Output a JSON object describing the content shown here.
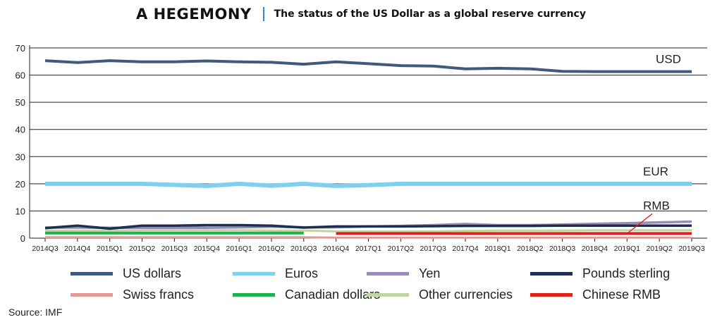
{
  "header": {
    "title": "A HEGEMONY",
    "subtitle": "The status of the US Dollar as a global reserve currency"
  },
  "source": "Source: IMF",
  "chart_data": {
    "type": "line",
    "title": "A HEGEMONY",
    "subtitle": "The status of the US Dollar as a global reserve currency",
    "xlabel": "",
    "ylabel": "",
    "ylim": [
      0,
      70
    ],
    "yticks": [
      0,
      10,
      20,
      30,
      40,
      50,
      60,
      70
    ],
    "grid": true,
    "legend_position": "bottom",
    "categories": [
      "2014Q3",
      "2014Q4",
      "2015Q1",
      "2015Q2",
      "2015Q3",
      "2015Q4",
      "2016Q1",
      "2016Q2",
      "2016Q3",
      "2016Q4",
      "2017Q1",
      "2017Q2",
      "2017Q3",
      "2017Q4",
      "2018Q1",
      "2018Q2",
      "2018Q3",
      "2018Q4",
      "2019Q1",
      "2019Q2",
      "2019Q3"
    ],
    "series": [
      {
        "name": "US dollars",
        "color": "#3f5a7a",
        "values": [
          65.3,
          64.6,
          65.3,
          64.9,
          64.9,
          65.2,
          64.9,
          64.7,
          64.0,
          64.9,
          64.2,
          63.5,
          63.3,
          62.3,
          62.5,
          62.3,
          61.4,
          61.3,
          61.3,
          61.3,
          61.3
        ]
      },
      {
        "name": "Euros",
        "color": "#7fd0f0",
        "values": [
          20.0,
          20.0,
          20.0,
          20.0,
          19.6,
          19.2,
          20.0,
          19.3,
          20.0,
          19.2,
          19.5,
          20.0,
          20.0,
          20.0,
          20.0,
          20.0,
          20.0,
          20.0,
          20.0,
          20.0,
          20.0
        ]
      },
      {
        "name": "Yen",
        "color": "#9b8ab3",
        "values": [
          3.9,
          3.9,
          3.8,
          3.8,
          3.8,
          3.8,
          4.0,
          4.2,
          4.0,
          4.0,
          4.3,
          4.5,
          4.8,
          5.2,
          4.8,
          4.8,
          5.0,
          5.3,
          5.5,
          5.8,
          6.1
        ]
      },
      {
        "name": "Pounds sterling",
        "color": "#1c2f50",
        "values": [
          3.7,
          4.6,
          3.5,
          4.6,
          4.6,
          4.8,
          4.8,
          4.6,
          3.9,
          4.3,
          4.3,
          4.3,
          4.4,
          4.5,
          4.5,
          4.5,
          4.6,
          4.6,
          4.6,
          4.6,
          4.6
        ]
      },
      {
        "name": "Swiss francs",
        "color": "#e09a9a",
        "values": [
          0.3,
          0.3,
          0.3,
          0.3,
          0.3,
          0.3,
          0.3,
          0.3,
          0.3,
          0.2,
          0.2,
          0.2,
          0.2,
          0.2,
          0.2,
          0.2,
          0.2,
          0.2,
          0.2,
          0.2,
          0.2
        ]
      },
      {
        "name": "Canadian dollars",
        "color": "#1fb24a",
        "values": [
          1.9,
          1.9,
          1.9,
          1.9,
          1.9,
          1.9,
          1.9,
          1.9,
          1.9,
          null,
          null,
          null,
          null,
          null,
          null,
          null,
          null,
          null,
          null,
          null,
          null
        ]
      },
      {
        "name": "Other currencies",
        "color": "#bfd6a0",
        "values": [
          2.8,
          2.8,
          2.8,
          2.9,
          2.9,
          2.9,
          2.9,
          2.8,
          2.8,
          2.5,
          2.5,
          2.5,
          2.5,
          2.7,
          2.8,
          2.8,
          2.8,
          2.9,
          2.9,
          2.9,
          2.9
        ]
      },
      {
        "name": "Chinese RMB",
        "color": "#e0201a",
        "values": [
          null,
          null,
          null,
          null,
          null,
          null,
          null,
          null,
          null,
          1.7,
          1.7,
          1.7,
          1.7,
          1.7,
          1.7,
          1.7,
          1.7,
          1.7,
          1.7,
          1.7,
          1.7
        ]
      }
    ],
    "annotations": [
      {
        "text": "USD",
        "series": "US dollars"
      },
      {
        "text": "EUR",
        "series": "Euros"
      },
      {
        "text": "RMB",
        "series": "Chinese RMB"
      }
    ]
  }
}
